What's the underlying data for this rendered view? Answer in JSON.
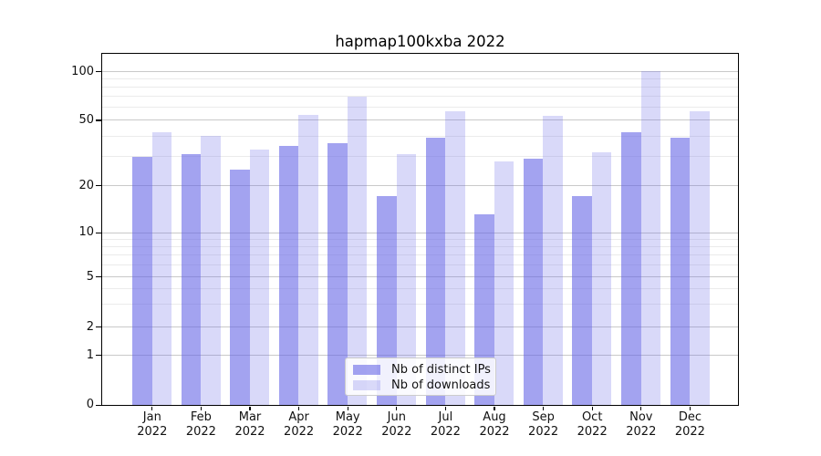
{
  "title": "hapmap100kxba 2022",
  "colors": {
    "bar_base": "#6666e6",
    "series_ips_effective": "#a3a3f0",
    "series_downloads_effective": "#d9d9f9",
    "grid_major": "#c9c9c9",
    "grid_minor": "#ebebeb",
    "axis": "#000000",
    "legend_border": "#cccccc"
  },
  "chart_data": {
    "type": "bar",
    "title": "hapmap100kxba 2022",
    "categories": [
      "Jan 2022",
      "Feb 2022",
      "Mar 2022",
      "Apr 2022",
      "May 2022",
      "Jun 2022",
      "Jul 2022",
      "Aug 2022",
      "Sep 2022",
      "Oct 2022",
      "Nov 2022",
      "Dec 2022"
    ],
    "series": [
      {
        "name": "Nb of distinct IPs",
        "color": "rgba(102,102,230,0.6)",
        "values": [
          30,
          31,
          25,
          35,
          36,
          17,
          39,
          13,
          29,
          17,
          42,
          39
        ]
      },
      {
        "name": "Nb of downloads",
        "color": "rgba(102,102,230,0.25)",
        "values": [
          42,
          40,
          33,
          54,
          70,
          31,
          57,
          28,
          53,
          32,
          100,
          57
        ]
      }
    ],
    "xlabel": "",
    "ylabel": "",
    "yscale": "symlog",
    "yticks": [
      0,
      1,
      2,
      5,
      10,
      20,
      50,
      100
    ],
    "yticks_minor": [
      3,
      4,
      6,
      7,
      8,
      9,
      30,
      40,
      60,
      70,
      80,
      90
    ],
    "ylim": [
      0,
      128
    ],
    "grid": true,
    "legend_position": "lower center"
  }
}
